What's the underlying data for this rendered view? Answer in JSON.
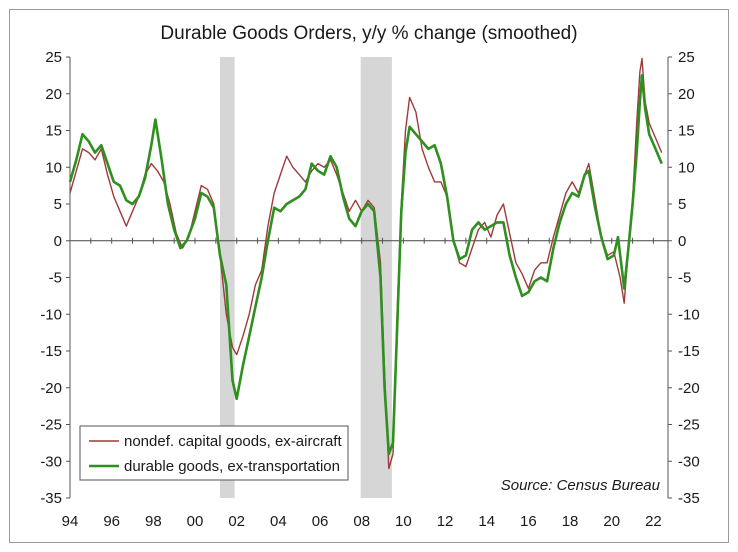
{
  "chart_data": {
    "type": "line",
    "title": "Durable Goods Orders, y/y % change (smoothed)",
    "xlabel": "",
    "ylabel": "",
    "ylim": [
      -35,
      25
    ],
    "xlim": [
      1994,
      2022.7
    ],
    "x_tick_labels": [
      "94",
      "96",
      "98",
      "00",
      "02",
      "04",
      "06",
      "08",
      "10",
      "12",
      "14",
      "16",
      "18",
      "20",
      "22"
    ],
    "y_ticks": [
      25,
      20,
      15,
      10,
      5,
      0,
      -5,
      -10,
      -15,
      -20,
      -25,
      -30,
      -35
    ],
    "source": "Source: Census Bureau",
    "recessions": [
      {
        "start": 2001.2,
        "end": 2001.9
      },
      {
        "start": 2007.95,
        "end": 2009.45
      }
    ],
    "series": [
      {
        "name": "nondef. capital goods, ex-aircraft",
        "color": "#9e3a3a",
        "points": [
          [
            1994.0,
            6.5
          ],
          [
            1994.3,
            9.5
          ],
          [
            1994.6,
            12.5
          ],
          [
            1994.9,
            12.0
          ],
          [
            1995.2,
            11.0
          ],
          [
            1995.5,
            12.5
          ],
          [
            1995.8,
            9.0
          ],
          [
            1996.1,
            6.0
          ],
          [
            1996.4,
            4.0
          ],
          [
            1996.7,
            2.0
          ],
          [
            1997.0,
            4.0
          ],
          [
            1997.3,
            6.0
          ],
          [
            1997.6,
            9.0
          ],
          [
            1997.9,
            10.5
          ],
          [
            1998.2,
            9.5
          ],
          [
            1998.5,
            8.0
          ],
          [
            1998.8,
            5.0
          ],
          [
            1999.1,
            1.0
          ],
          [
            1999.4,
            -1.0
          ],
          [
            1999.7,
            0.5
          ],
          [
            2000.0,
            4.0
          ],
          [
            2000.3,
            7.5
          ],
          [
            2000.6,
            7.0
          ],
          [
            2000.9,
            5.0
          ],
          [
            2001.2,
            -2.0
          ],
          [
            2001.5,
            -10.0
          ],
          [
            2001.8,
            -14.5
          ],
          [
            2002.0,
            -15.5
          ],
          [
            2002.3,
            -13.0
          ],
          [
            2002.6,
            -10.0
          ],
          [
            2002.9,
            -6.0
          ],
          [
            2003.2,
            -4.0
          ],
          [
            2003.5,
            2.0
          ],
          [
            2003.8,
            6.5
          ],
          [
            2004.1,
            9.0
          ],
          [
            2004.4,
            11.5
          ],
          [
            2004.7,
            10.0
          ],
          [
            2005.0,
            9.0
          ],
          [
            2005.3,
            8.0
          ],
          [
            2005.6,
            9.5
          ],
          [
            2005.9,
            10.5
          ],
          [
            2006.2,
            10.0
          ],
          [
            2006.5,
            11.0
          ],
          [
            2006.8,
            9.0
          ],
          [
            2007.1,
            6.5
          ],
          [
            2007.4,
            4.0
          ],
          [
            2007.7,
            5.5
          ],
          [
            2008.0,
            4.0
          ],
          [
            2008.3,
            5.5
          ],
          [
            2008.6,
            4.5
          ],
          [
            2008.9,
            -3.0
          ],
          [
            2009.1,
            -18.0
          ],
          [
            2009.3,
            -31.0
          ],
          [
            2009.5,
            -29.0
          ],
          [
            2009.7,
            -10.0
          ],
          [
            2009.9,
            5.0
          ],
          [
            2010.1,
            15.0
          ],
          [
            2010.3,
            19.5
          ],
          [
            2010.6,
            17.5
          ],
          [
            2010.9,
            12.5
          ],
          [
            2011.2,
            10.0
          ],
          [
            2011.5,
            8.0
          ],
          [
            2011.8,
            8.0
          ],
          [
            2012.1,
            6.0
          ],
          [
            2012.4,
            0.0
          ],
          [
            2012.7,
            -3.0
          ],
          [
            2013.0,
            -3.5
          ],
          [
            2013.3,
            -1.0
          ],
          [
            2013.6,
            1.5
          ],
          [
            2013.9,
            2.5
          ],
          [
            2014.2,
            0.5
          ],
          [
            2014.5,
            3.5
          ],
          [
            2014.8,
            5.0
          ],
          [
            2015.1,
            1.0
          ],
          [
            2015.4,
            -3.0
          ],
          [
            2015.7,
            -4.5
          ],
          [
            2016.0,
            -6.5
          ],
          [
            2016.3,
            -4.0
          ],
          [
            2016.6,
            -3.0
          ],
          [
            2016.9,
            -3.0
          ],
          [
            2017.2,
            0.5
          ],
          [
            2017.5,
            3.5
          ],
          [
            2017.8,
            6.5
          ],
          [
            2018.1,
            8.0
          ],
          [
            2018.4,
            6.5
          ],
          [
            2018.7,
            9.0
          ],
          [
            2018.9,
            10.5
          ],
          [
            2019.2,
            5.5
          ],
          [
            2019.5,
            0.5
          ],
          [
            2019.8,
            -2.0
          ],
          [
            2020.1,
            -1.5
          ],
          [
            2020.4,
            -5.0
          ],
          [
            2020.6,
            -8.5
          ],
          [
            2020.8,
            -1.0
          ],
          [
            2021.0,
            5.5
          ],
          [
            2021.2,
            16.0
          ],
          [
            2021.35,
            23.0
          ],
          [
            2021.45,
            24.8
          ],
          [
            2021.6,
            19.0
          ],
          [
            2021.8,
            16.0
          ],
          [
            2022.1,
            14.0
          ],
          [
            2022.4,
            12.0
          ]
        ]
      },
      {
        "name": "durable goods, ex-transportation",
        "color": "#2f8f1f",
        "points": [
          [
            1994.0,
            8.0
          ],
          [
            1994.3,
            11.0
          ],
          [
            1994.6,
            14.5
          ],
          [
            1994.9,
            13.5
          ],
          [
            1995.2,
            12.0
          ],
          [
            1995.5,
            13.0
          ],
          [
            1995.8,
            10.5
          ],
          [
            1996.1,
            8.0
          ],
          [
            1996.4,
            7.5
          ],
          [
            1996.7,
            5.5
          ],
          [
            1997.0,
            5.0
          ],
          [
            1997.3,
            6.0
          ],
          [
            1997.6,
            8.5
          ],
          [
            1997.9,
            13.0
          ],
          [
            1998.1,
            16.5
          ],
          [
            1998.4,
            11.0
          ],
          [
            1998.7,
            5.0
          ],
          [
            1999.0,
            1.5
          ],
          [
            1999.3,
            -1.0
          ],
          [
            1999.6,
            0.0
          ],
          [
            2000.0,
            3.0
          ],
          [
            2000.3,
            6.5
          ],
          [
            2000.6,
            6.0
          ],
          [
            2000.9,
            4.5
          ],
          [
            2001.2,
            -2.0
          ],
          [
            2001.5,
            -6.0
          ],
          [
            2001.8,
            -19.0
          ],
          [
            2002.0,
            -21.5
          ],
          [
            2002.3,
            -17.0
          ],
          [
            2002.6,
            -13.0
          ],
          [
            2002.9,
            -9.0
          ],
          [
            2003.2,
            -5.0
          ],
          [
            2003.5,
            0.0
          ],
          [
            2003.8,
            4.5
          ],
          [
            2004.1,
            4.0
          ],
          [
            2004.4,
            5.0
          ],
          [
            2004.7,
            5.5
          ],
          [
            2005.0,
            6.0
          ],
          [
            2005.3,
            7.0
          ],
          [
            2005.6,
            10.5
          ],
          [
            2005.9,
            9.5
          ],
          [
            2006.2,
            9.0
          ],
          [
            2006.5,
            11.5
          ],
          [
            2006.8,
            10.0
          ],
          [
            2007.1,
            6.0
          ],
          [
            2007.4,
            3.0
          ],
          [
            2007.7,
            2.0
          ],
          [
            2008.0,
            4.0
          ],
          [
            2008.3,
            5.0
          ],
          [
            2008.6,
            4.0
          ],
          [
            2008.9,
            -5.0
          ],
          [
            2009.1,
            -20.0
          ],
          [
            2009.3,
            -29.0
          ],
          [
            2009.5,
            -27.5
          ],
          [
            2009.7,
            -12.0
          ],
          [
            2009.9,
            4.0
          ],
          [
            2010.1,
            12.0
          ],
          [
            2010.3,
            15.5
          ],
          [
            2010.6,
            14.5
          ],
          [
            2010.9,
            13.5
          ],
          [
            2011.2,
            12.5
          ],
          [
            2011.5,
            13.0
          ],
          [
            2011.8,
            10.5
          ],
          [
            2012.1,
            6.0
          ],
          [
            2012.4,
            0.0
          ],
          [
            2012.7,
            -2.5
          ],
          [
            2013.0,
            -2.0
          ],
          [
            2013.3,
            1.5
          ],
          [
            2013.6,
            2.5
          ],
          [
            2013.9,
            1.5
          ],
          [
            2014.2,
            2.0
          ],
          [
            2014.5,
            2.5
          ],
          [
            2014.8,
            2.5
          ],
          [
            2015.1,
            -2.0
          ],
          [
            2015.4,
            -5.0
          ],
          [
            2015.7,
            -7.5
          ],
          [
            2016.0,
            -7.0
          ],
          [
            2016.3,
            -5.5
          ],
          [
            2016.6,
            -5.0
          ],
          [
            2016.9,
            -5.5
          ],
          [
            2017.2,
            -1.0
          ],
          [
            2017.5,
            2.5
          ],
          [
            2017.8,
            5.0
          ],
          [
            2018.1,
            6.5
          ],
          [
            2018.4,
            6.0
          ],
          [
            2018.7,
            9.0
          ],
          [
            2018.9,
            9.5
          ],
          [
            2019.2,
            4.5
          ],
          [
            2019.5,
            0.5
          ],
          [
            2019.8,
            -2.5
          ],
          [
            2020.1,
            -2.0
          ],
          [
            2020.3,
            0.5
          ],
          [
            2020.6,
            -6.5
          ],
          [
            2020.8,
            -1.0
          ],
          [
            2021.0,
            5.0
          ],
          [
            2021.2,
            12.0
          ],
          [
            2021.35,
            19.0
          ],
          [
            2021.45,
            22.5
          ],
          [
            2021.6,
            18.0
          ],
          [
            2021.8,
            14.5
          ],
          [
            2022.1,
            12.5
          ],
          [
            2022.4,
            10.5
          ]
        ]
      }
    ]
  }
}
